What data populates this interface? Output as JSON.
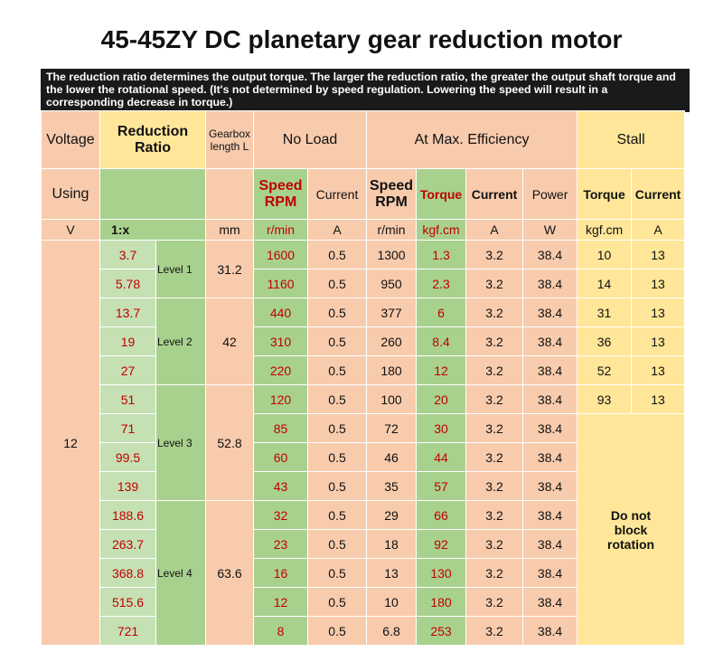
{
  "title": "45-45ZY DC planetary gear reduction motor",
  "note": "The reduction ratio determines the output torque. The larger the reduction ratio, the greater the output shaft torque and the lower the rotational speed. (It's not determined by speed regulation. Lowering the speed will result in a corresponding decrease in torque.)",
  "table": {
    "header_row1": [
      "Voltage",
      "Reduction Ratio",
      "Gearbox length L",
      "No Load",
      "At Max. Efficiency",
      "Stall"
    ],
    "header_row2": [
      "Using",
      "Speed RPM",
      "Current",
      "Speed RPM",
      "Torque",
      "Current",
      "Power",
      "Torque",
      "Current"
    ],
    "units": [
      "V",
      "1:x",
      "mm",
      "r/min",
      "A",
      "r/min",
      "kgf.cm",
      "A",
      "W",
      "kgf.cm",
      "A"
    ],
    "voltage": "12",
    "stall_note": "Do not block rotation",
    "levels": [
      {
        "label": "Level 1",
        "length": "31.2",
        "rows": [
          [
            "3.7",
            "1600",
            "0.5",
            "1300",
            "1.3",
            "3.2",
            "38.4",
            "10",
            "13"
          ],
          [
            "5.78",
            "1160",
            "0.5",
            "950",
            "2.3",
            "3.2",
            "38.4",
            "14",
            "13"
          ]
        ]
      },
      {
        "label": "Level 2",
        "length": "42",
        "rows": [
          [
            "13.7",
            "440",
            "0.5",
            "377",
            "6",
            "3.2",
            "38.4",
            "31",
            "13"
          ],
          [
            "19",
            "310",
            "0.5",
            "260",
            "8.4",
            "3.2",
            "38.4",
            "36",
            "13"
          ],
          [
            "27",
            "220",
            "0.5",
            "180",
            "12",
            "3.2",
            "38.4",
            "52",
            "13"
          ]
        ]
      },
      {
        "label": "Level 3",
        "length": "52.8",
        "rows": [
          [
            "51",
            "120",
            "0.5",
            "100",
            "20",
            "3.2",
            "38.4",
            "93",
            "13"
          ],
          [
            "71",
            "85",
            "0.5",
            "72",
            "30",
            "3.2",
            "38.4"
          ],
          [
            "99.5",
            "60",
            "0.5",
            "46",
            "44",
            "3.2",
            "38.4"
          ],
          [
            "139",
            "43",
            "0.5",
            "35",
            "57",
            "3.2",
            "38.4"
          ]
        ]
      },
      {
        "label": "Level 4",
        "length": "63.6",
        "rows": [
          [
            "188.6",
            "32",
            "0.5",
            "29",
            "66",
            "3.2",
            "38.4"
          ],
          [
            "263.7",
            "23",
            "0.5",
            "18",
            "92",
            "3.2",
            "38.4"
          ],
          [
            "368.8",
            "16",
            "0.5",
            "13",
            "130",
            "3.2",
            "38.4"
          ],
          [
            "515.6",
            "12",
            "0.5",
            "10",
            "180",
            "3.2",
            "38.4"
          ],
          [
            "721",
            "8",
            "0.5",
            "6.8",
            "253",
            "3.2",
            "38.4"
          ]
        ]
      }
    ]
  }
}
